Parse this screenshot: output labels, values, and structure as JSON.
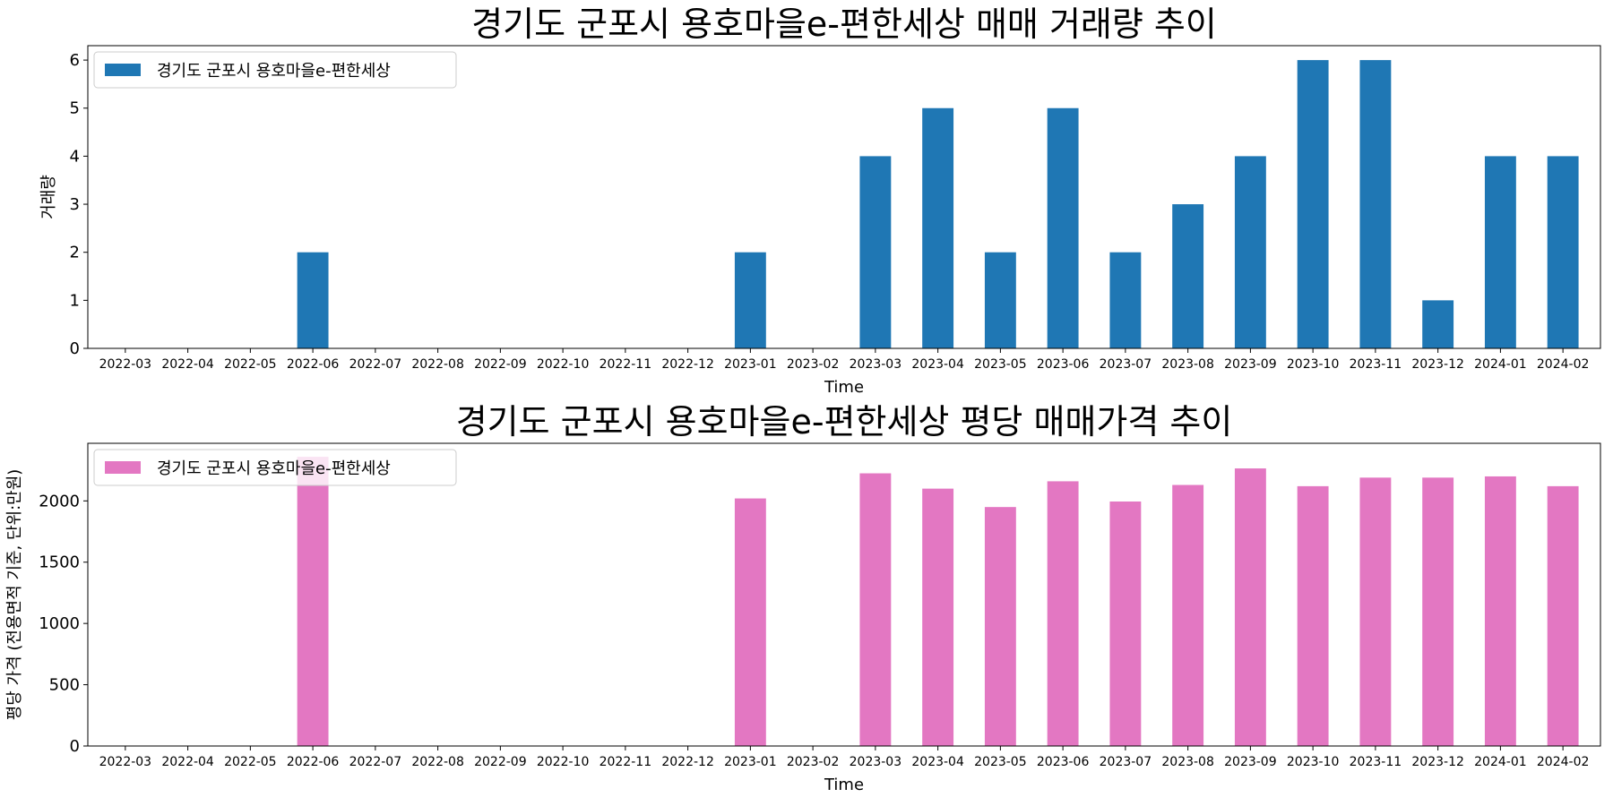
{
  "chart_data": [
    {
      "type": "bar",
      "title": "경기도 군포시 용호마을e-편한세상 매매 거래량 추이",
      "xlabel": "Time",
      "ylabel": "거래량",
      "categories": [
        "2022-03",
        "2022-04",
        "2022-05",
        "2022-06",
        "2022-07",
        "2022-08",
        "2022-09",
        "2022-10",
        "2022-11",
        "2022-12",
        "2023-01",
        "2023-02",
        "2023-03",
        "2023-04",
        "2023-05",
        "2023-06",
        "2023-07",
        "2023-08",
        "2023-09",
        "2023-10",
        "2023-11",
        "2023-12",
        "2024-01",
        "2024-02"
      ],
      "series": [
        {
          "name": "경기도 군포시 용호마을e-편한세상",
          "color": "#1f77b4",
          "values": [
            0,
            0,
            0,
            2,
            0,
            0,
            0,
            0,
            0,
            0,
            2,
            0,
            4,
            5,
            2,
            5,
            2,
            3,
            4,
            6,
            6,
            1,
            4,
            4
          ]
        }
      ],
      "ylim": [
        0,
        6.3
      ],
      "yticks": [
        0,
        1,
        2,
        3,
        4,
        5,
        6
      ],
      "grid": false,
      "legend": "upper-left"
    },
    {
      "type": "bar",
      "title": "경기도 군포시 용호마을e-편한세상 평당 매매가격 추이",
      "xlabel": "Time",
      "ylabel": "평당 가격 (전용면적 기준, 단위:만원)",
      "categories": [
        "2022-03",
        "2022-04",
        "2022-05",
        "2022-06",
        "2022-07",
        "2022-08",
        "2022-09",
        "2022-10",
        "2022-11",
        "2022-12",
        "2023-01",
        "2023-02",
        "2023-03",
        "2023-04",
        "2023-05",
        "2023-06",
        "2023-07",
        "2023-08",
        "2023-09",
        "2023-10",
        "2023-11",
        "2023-12",
        "2024-01",
        "2024-02"
      ],
      "series": [
        {
          "name": "경기도 군포시 용호마을e-편한세상",
          "color": "#e377c2",
          "values": [
            0,
            0,
            0,
            2360,
            0,
            0,
            0,
            0,
            0,
            0,
            2020,
            0,
            2225,
            2100,
            1950,
            2160,
            1995,
            2130,
            2265,
            2120,
            2190,
            2190,
            2200,
            2120
          ]
        }
      ],
      "ylim": [
        0,
        2470
      ],
      "yticks": [
        0,
        500,
        1000,
        1500,
        2000
      ],
      "grid": false,
      "legend": "upper-left"
    }
  ]
}
